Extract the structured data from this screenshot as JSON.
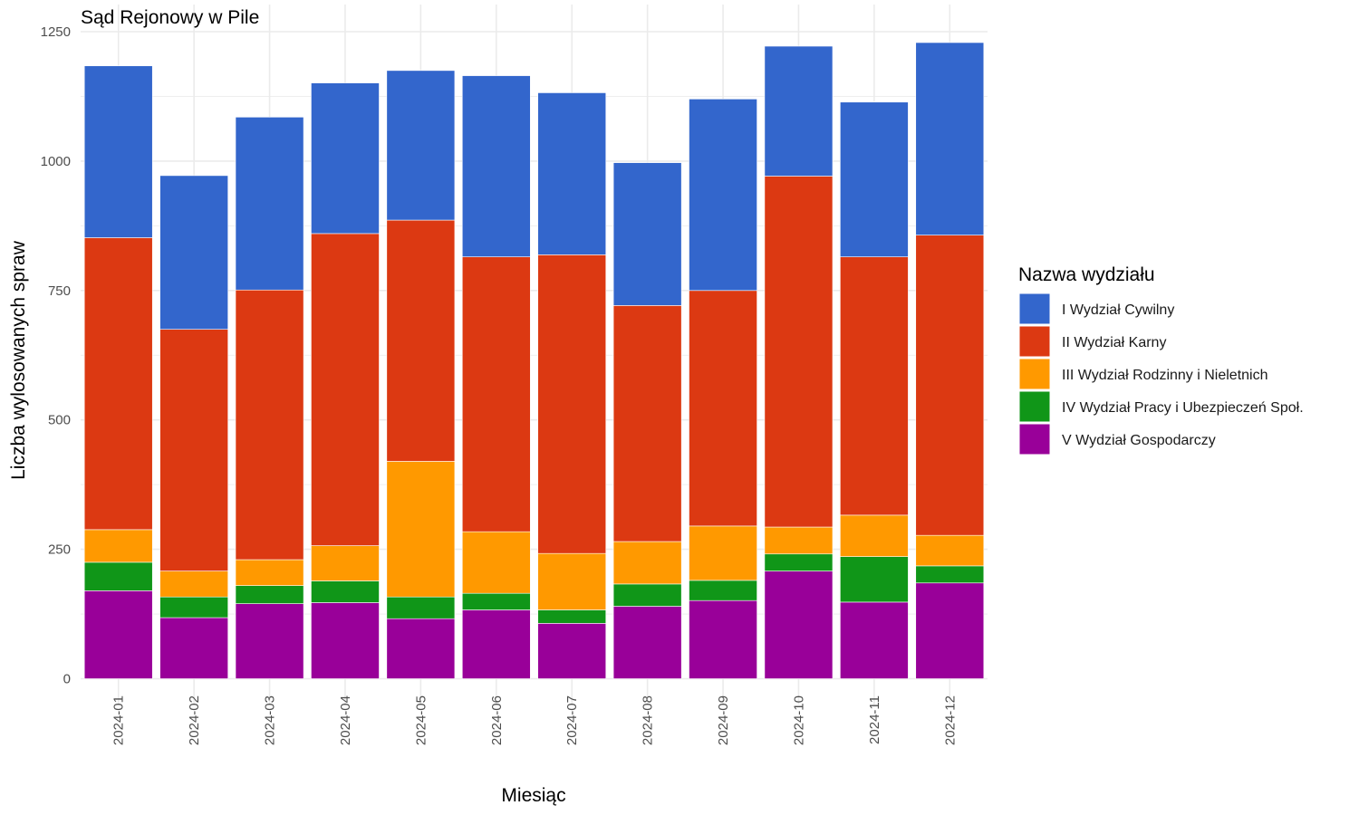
{
  "chart_data": {
    "type": "bar",
    "stacked": true,
    "title": "Sąd Rejonowy w Pile",
    "xlabel": "Miesiąc",
    "ylabel": "Liczba wylosowanych spraw",
    "ylim": [
      0,
      1250
    ],
    "yticks": [
      0,
      250,
      500,
      750,
      1000,
      1250
    ],
    "grid": true,
    "legend": {
      "title": "Nazwa wydziału",
      "placement": "right"
    },
    "categories": [
      "2024-01",
      "2024-02",
      "2024-03",
      "2024-04",
      "2024-05",
      "2024-06",
      "2024-07",
      "2024-08",
      "2024-09",
      "2024-10",
      "2024-11",
      "2024-12"
    ],
    "series": [
      {
        "name": "V Wydział Gospodarczy",
        "color": "#990099",
        "values": [
          170,
          118,
          145,
          147,
          116,
          133,
          107,
          140,
          151,
          208,
          148,
          185
        ]
      },
      {
        "name": "IV Wydział Pracy i Ubezpieczeń Społ.",
        "color": "#109618",
        "values": [
          55,
          40,
          35,
          42,
          42,
          32,
          26,
          43,
          39,
          33,
          88,
          33
        ]
      },
      {
        "name": "III Wydział Rodzinny i Nieletnich",
        "color": "#FF9900",
        "values": [
          63,
          50,
          50,
          68,
          262,
          119,
          109,
          82,
          105,
          52,
          80,
          59
        ]
      },
      {
        "name": "II Wydział Karny",
        "color": "#DC3912",
        "values": [
          564,
          467,
          521,
          603,
          466,
          531,
          577,
          456,
          455,
          678,
          499,
          580
        ]
      },
      {
        "name": "I Wydział Cywilny",
        "color": "#3366CC",
        "values": [
          332,
          297,
          334,
          291,
          289,
          350,
          313,
          276,
          370,
          251,
          299,
          372
        ]
      }
    ]
  }
}
